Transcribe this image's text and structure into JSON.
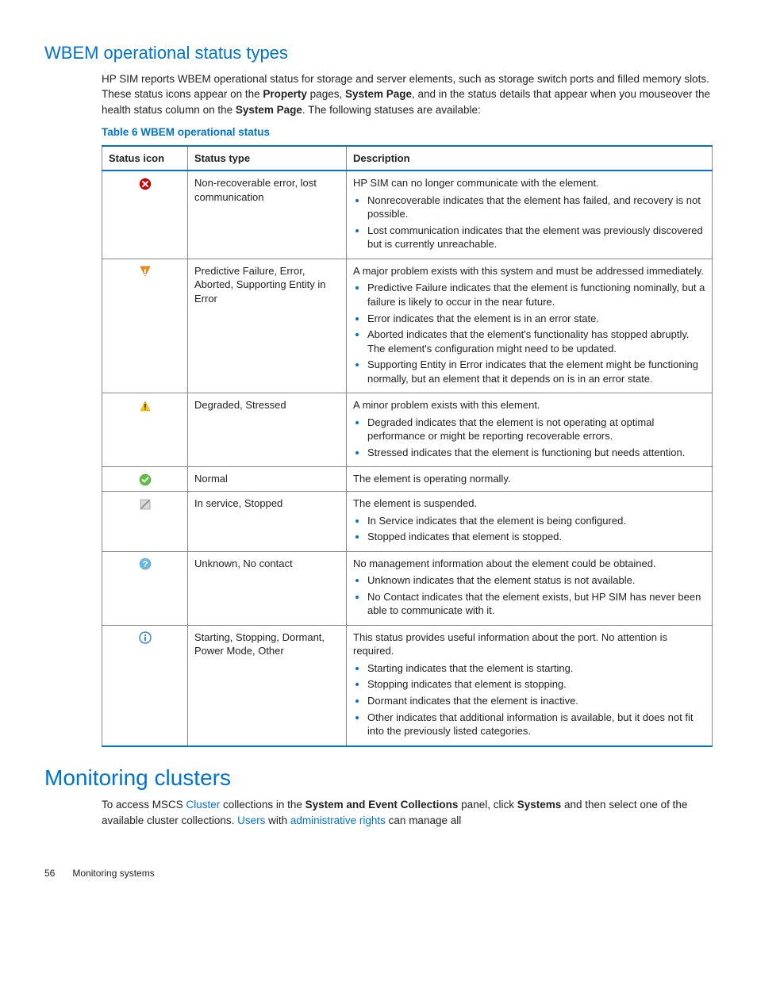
{
  "colors": {
    "accent": "#0073cf",
    "border": "#888888",
    "text": "#222222",
    "error_fill": "#d40000",
    "warn_fill": "#ff8a00",
    "caution_fill": "#ffcc00",
    "ok_fill": "#5fbf3f",
    "info_fill": "#3a8ad6",
    "disabled_fill": "#bfbfbf"
  },
  "section1": {
    "title": "WBEM operational status types",
    "intro_html": "HP SIM reports WBEM operational status for storage and server elements, such as storage switch ports and filled memory slots. These status icons appear on the <b>Property</b> pages, <b>System Page</b>, and in the status details that appear when you mouseover the health status column on the <b>System Page</b>. The following statuses are available:",
    "table_caption": "Table 6 WBEM operational status"
  },
  "table": {
    "columns": [
      "Status icon",
      "Status type",
      "Description"
    ],
    "rows": [
      {
        "icon": "error",
        "type": "Non-recoverable error, lost communication",
        "desc_lead": "HP SIM can no longer communicate with the element.",
        "bullets": [
          "Nonrecoverable indicates that the element has failed, and recovery is not possible.",
          "Lost communication indicates that the element was previously discovered but is currently unreachable."
        ]
      },
      {
        "icon": "major",
        "type": "Predictive Failure, Error, Aborted, Supporting Entity in Error",
        "desc_lead": "A major problem exists with this system and must be addressed immediately.",
        "bullets": [
          "Predictive Failure indicates that the element is functioning nominally, but a failure is likely to occur in the near future.",
          "Error indicates that the element is in an error state.",
          "Aborted indicates that the element's functionality has stopped abruptly. The element's configuration might need to be updated.",
          "Supporting Entity in Error indicates that the element might be functioning normally, but an element that it depends on is in an error state."
        ]
      },
      {
        "icon": "minor",
        "type": "Degraded, Stressed",
        "desc_lead": "A minor problem exists with this element.",
        "bullets": [
          "Degraded indicates that the element is not operating at optimal performance or might be reporting recoverable errors.",
          "Stressed indicates that the element is functioning but needs attention."
        ]
      },
      {
        "icon": "ok",
        "type": "Normal",
        "desc_lead": "The element is operating normally.",
        "bullets": []
      },
      {
        "icon": "disabled",
        "type": "In service, Stopped",
        "desc_lead": "The element is suspended.",
        "bullets": [
          "In Service indicates that the element is being configured.",
          "Stopped indicates that element is stopped."
        ]
      },
      {
        "icon": "unknown",
        "type": "Unknown, No contact",
        "desc_lead": "No management information about the element could be obtained.",
        "bullets": [
          "Unknown indicates that the element status is not available.",
          "No Contact indicates that the element exists, but HP SIM has never been able to communicate with it."
        ]
      },
      {
        "icon": "info",
        "type": "Starting, Stopping, Dormant, Power Mode, Other",
        "desc_lead": "This status provides useful information about the port. No attention is required.",
        "bullets": [
          "Starting indicates that the element is starting.",
          "Stopping indicates that element is stopping.",
          "Dormant indicates that the element is inactive.",
          "Other indicates that additional information is available, but it does not fit into the previously listed categories."
        ]
      }
    ]
  },
  "section2": {
    "title": "Monitoring clusters",
    "para": {
      "pre": "To access MSCS ",
      "link1": "Cluster",
      "mid1": " collections in the ",
      "bold1": "System and Event Collections",
      "mid2": " panel, click ",
      "bold2": "Systems",
      "mid3": " and then select one of the available cluster collections. ",
      "link2": "Users",
      "mid4": " with ",
      "link3": "administrative rights",
      "post": " can manage all"
    }
  },
  "footer": {
    "page": "56",
    "chapter": "Monitoring systems"
  }
}
